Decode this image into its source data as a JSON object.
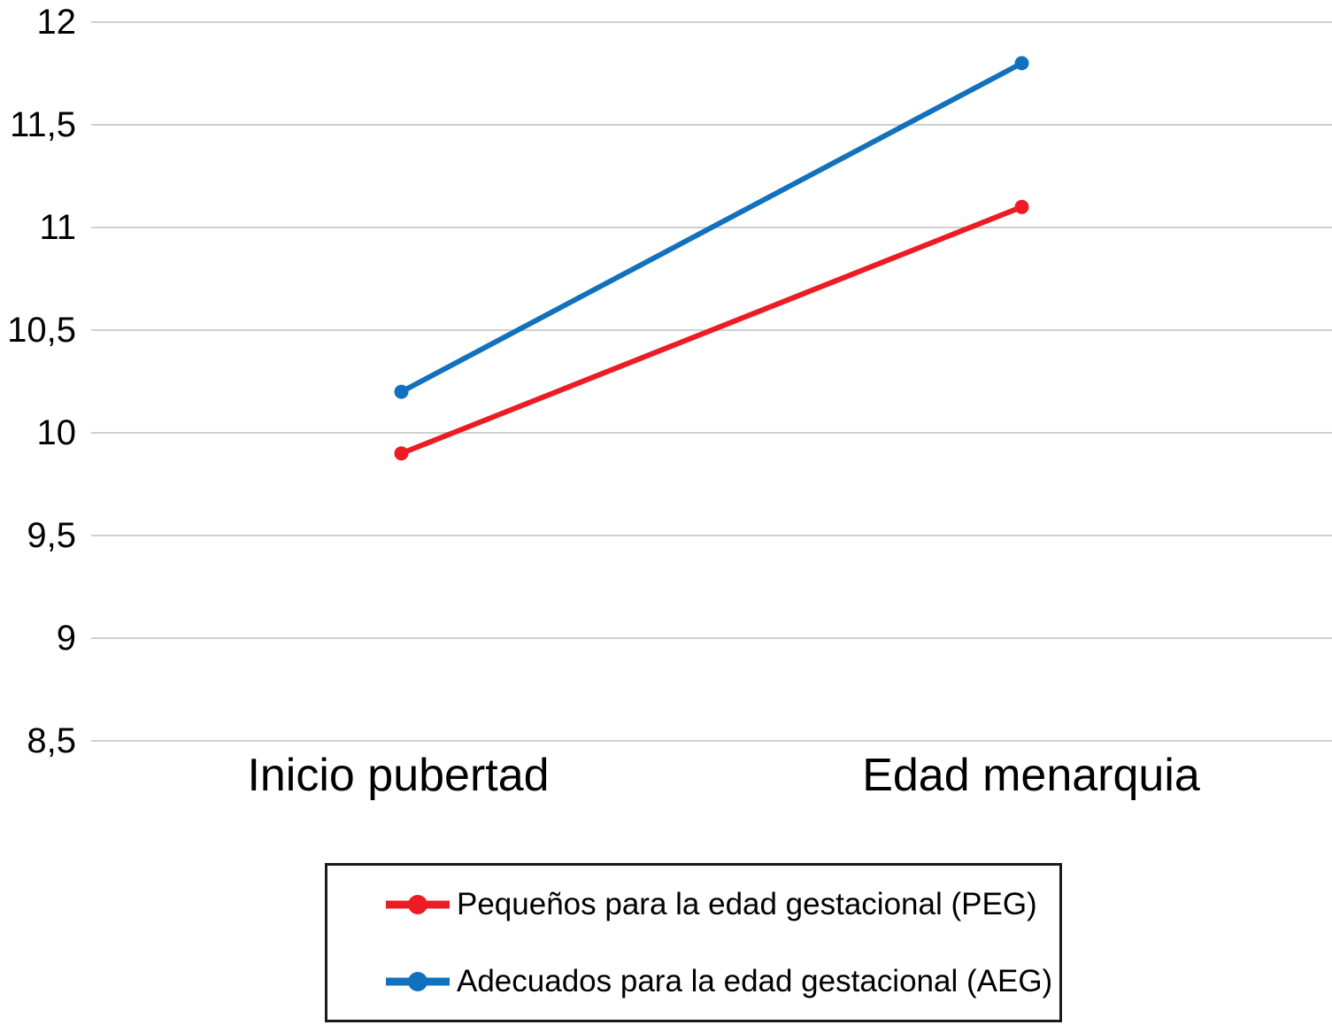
{
  "chart_data": {
    "type": "line",
    "categories": [
      "Inicio pubertad",
      "Edad menarquia"
    ],
    "series": [
      {
        "name": "Pequeños para la edad gestacional (PEG)",
        "values": [
          9.9,
          11.1
        ],
        "color": "#ed1b24"
      },
      {
        "name": "Adecuados para la edad gestacional (AEG)",
        "values": [
          10.2,
          11.8
        ],
        "color": "#1271bd"
      }
    ],
    "title": "",
    "xlabel": "",
    "ylabel": "",
    "ylim": [
      8.5,
      12
    ],
    "ytick_step": 0.5,
    "yticklabels": [
      "8,5",
      "9",
      "9,5",
      "10",
      "10,5",
      "11",
      "11,5",
      "12"
    ],
    "decimal_separator": ",",
    "grid": true,
    "gridline_color": "#d0d0d0",
    "axis_text_color": "#000000",
    "legend_position": "bottom",
    "legend_border_color": "#1a1a1a",
    "marker": "circle"
  }
}
